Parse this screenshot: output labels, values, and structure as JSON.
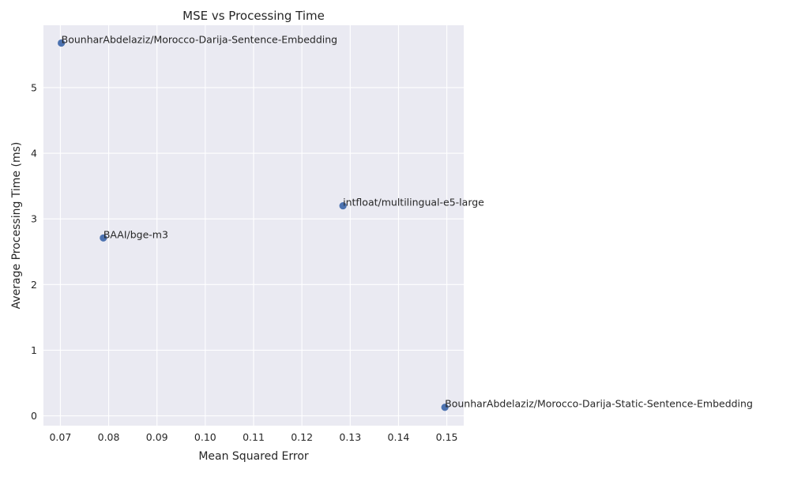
{
  "chart_data": {
    "type": "scatter",
    "title": "MSE vs Processing Time",
    "xlabel": "Mean Squared Error",
    "ylabel": "Average Processing Time (ms)",
    "xlim": [
      0.0665,
      0.1535
    ],
    "ylim": [
      -0.15,
      5.95
    ],
    "xticks": [
      0.07,
      0.08,
      0.09,
      0.1,
      0.11,
      0.12,
      0.13,
      0.14,
      0.15
    ],
    "xtick_labels": [
      "0.07",
      "0.08",
      "0.09",
      "0.10",
      "0.11",
      "0.12",
      "0.13",
      "0.14",
      "0.15"
    ],
    "yticks": [
      0,
      1,
      2,
      3,
      4,
      5
    ],
    "ytick_labels": [
      "0",
      "1",
      "2",
      "3",
      "4",
      "5"
    ],
    "grid": true,
    "background_color": "#EAEAF2",
    "grid_color": "#FFFFFF",
    "marker_color": "#4C72B0",
    "points": [
      {
        "label": "BounharAbdelaziz/Morocco-Darija-Sentence-Embedding",
        "x": 0.0702,
        "y": 5.68
      },
      {
        "label": "intfloat/multilingual-e5-large",
        "x": 0.1285,
        "y": 3.2
      },
      {
        "label": "BAAI/bge-m3",
        "x": 0.0789,
        "y": 2.71
      },
      {
        "label": "BounharAbdelaziz/Morocco-Darija-Static-Sentence-Embedding",
        "x": 0.1496,
        "y": 0.13
      }
    ]
  }
}
